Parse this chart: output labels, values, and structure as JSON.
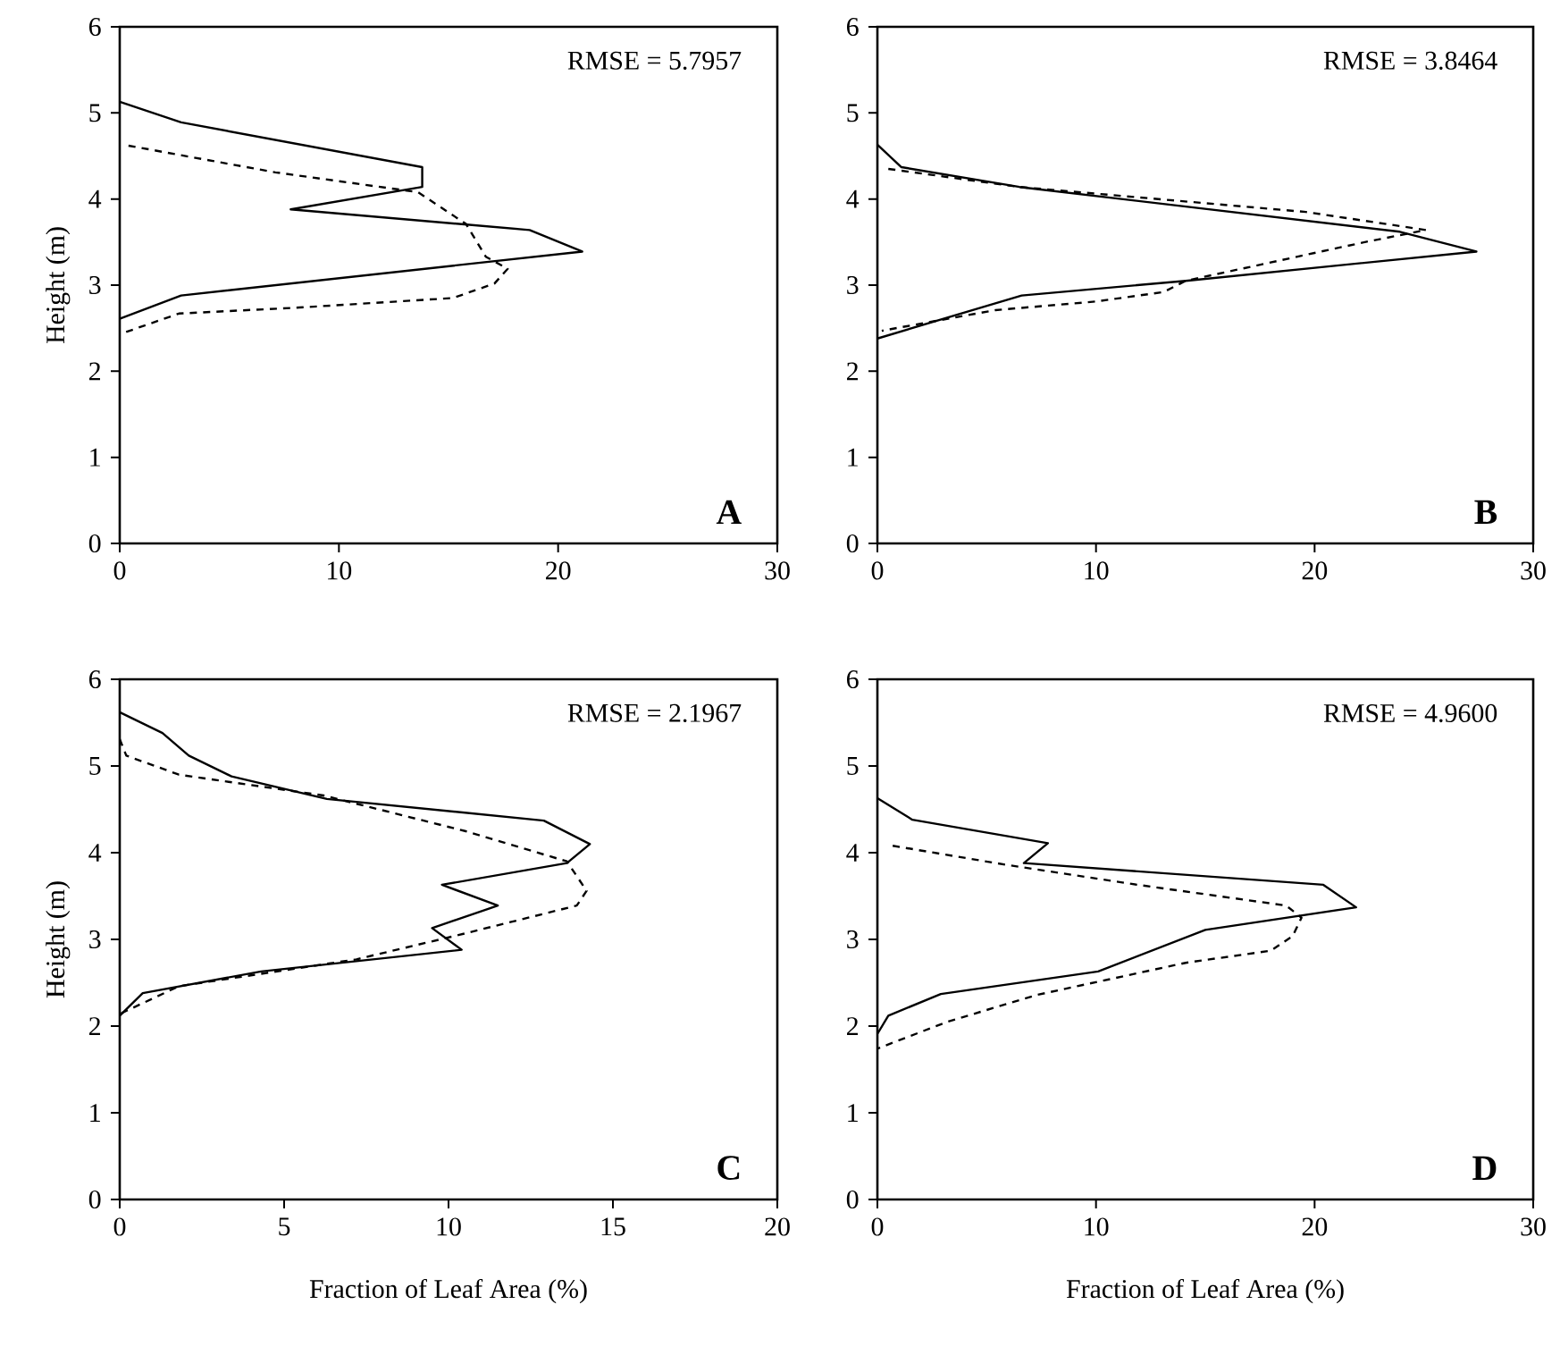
{
  "chart_data": [
    {
      "type": "line",
      "xlim": [
        0,
        30
      ],
      "ylim": [
        0,
        6
      ],
      "xticks": [
        0,
        10,
        20,
        30
      ],
      "yticks": [
        0,
        1,
        2,
        3,
        4,
        5,
        6
      ],
      "ylabel": "Height (m)",
      "grid": false,
      "annotations": [
        "RMSE = 5.7957",
        "A"
      ],
      "series": [
        {
          "color": "#000000",
          "line_style": "solid",
          "x": [
            0,
            2.8,
            13.8,
            13.8,
            7.8,
            18.7,
            21.1,
            2.8,
            0
          ],
          "values": [
            5.13,
            4.89,
            4.37,
            4.14,
            3.88,
            3.64,
            3.39,
            2.88,
            2.61
          ]
        },
        {
          "color": "#000000",
          "line_style": "dashed",
          "x": [
            0.4,
            7.1,
            13.6,
            15.8,
            16.7,
            17.7,
            17.1,
            15.2,
            8.2,
            2.7,
            0
          ],
          "values": [
            4.62,
            4.31,
            4.08,
            3.71,
            3.33,
            3.19,
            3.02,
            2.85,
            2.74,
            2.67,
            2.43
          ]
        }
      ]
    },
    {
      "type": "line",
      "xlim": [
        0,
        30
      ],
      "ylim": [
        0,
        6
      ],
      "xticks": [
        0,
        10,
        20,
        30
      ],
      "yticks": [
        0,
        1,
        2,
        3,
        4,
        5,
        6
      ],
      "grid": false,
      "annotations": [
        "RMSE = 3.8464",
        "B"
      ],
      "series": [
        {
          "color": "#000000",
          "line_style": "solid",
          "x": [
            0,
            1.1,
            6.5,
            23.9,
            27.4,
            14.1,
            6.6,
            0
          ],
          "values": [
            4.63,
            4.37,
            4.14,
            3.62,
            3.39,
            3.05,
            2.88,
            2.38
          ]
        },
        {
          "color": "#000000",
          "line_style": "dashed",
          "x": [
            0.5,
            6.5,
            19.6,
            25.1,
            22.3,
            14.1,
            13.1,
            10.0,
            5.4,
            0.2
          ],
          "values": [
            4.35,
            4.14,
            3.85,
            3.64,
            3.5,
            3.05,
            2.92,
            2.81,
            2.71,
            2.47
          ]
        }
      ]
    },
    {
      "type": "line",
      "xlim": [
        0,
        20
      ],
      "ylim": [
        0,
        6
      ],
      "xticks": [
        0,
        5,
        10,
        15,
        20
      ],
      "yticks": [
        0,
        1,
        2,
        3,
        4,
        5,
        6
      ],
      "xlabel": "Fraction of Leaf Area (%)",
      "ylabel": "Height (m)",
      "grid": false,
      "annotations": [
        "RMSE = 2.1967",
        "C"
      ],
      "series": [
        {
          "color": "#000000",
          "line_style": "solid",
          "x": [
            0,
            1.3,
            2.1,
            3.4,
            6.3,
            12.9,
            14.3,
            13.6,
            9.8,
            11.5,
            9.5,
            10.4,
            4.3,
            0.7,
            0
          ],
          "values": [
            5.62,
            5.38,
            5.12,
            4.88,
            4.62,
            4.37,
            4.1,
            3.88,
            3.63,
            3.39,
            3.13,
            2.88,
            2.63,
            2.38,
            2.12
          ]
        },
        {
          "color": "#000000",
          "line_style": "dashed",
          "x": [
            0,
            0.2,
            1.8,
            6.2,
            10.5,
            13.6,
            14.2,
            13.9,
            10.3,
            7.2,
            1.8,
            0
          ],
          "values": [
            5.31,
            5.12,
            4.9,
            4.66,
            4.25,
            3.9,
            3.56,
            3.39,
            3.05,
            2.77,
            2.46,
            2.14
          ]
        }
      ]
    },
    {
      "type": "line",
      "xlim": [
        0,
        30
      ],
      "ylim": [
        0,
        6
      ],
      "xticks": [
        0,
        10,
        20,
        30
      ],
      "yticks": [
        0,
        1,
        2,
        3,
        4,
        5,
        6
      ],
      "xlabel": "Fraction of Leaf Area (%)",
      "grid": false,
      "annotations": [
        "RMSE = 4.9600",
        "D"
      ],
      "series": [
        {
          "color": "#000000",
          "line_style": "solid",
          "x": [
            0,
            1.6,
            7.8,
            6.7,
            20.4,
            21.9,
            15.0,
            10.1,
            2.9,
            0.5,
            0
          ],
          "values": [
            4.63,
            4.38,
            4.11,
            3.88,
            3.63,
            3.37,
            3.11,
            2.63,
            2.37,
            2.12,
            1.91
          ]
        },
        {
          "color": "#000000",
          "line_style": "dashed",
          "x": [
            0.7,
            5.9,
            11.9,
            18.7,
            19.4,
            19.0,
            18.0,
            14.1,
            7.3,
            3.2,
            0
          ],
          "values": [
            4.08,
            3.86,
            3.63,
            3.39,
            3.25,
            3.04,
            2.87,
            2.73,
            2.36,
            2.05,
            1.74
          ]
        }
      ]
    }
  ]
}
